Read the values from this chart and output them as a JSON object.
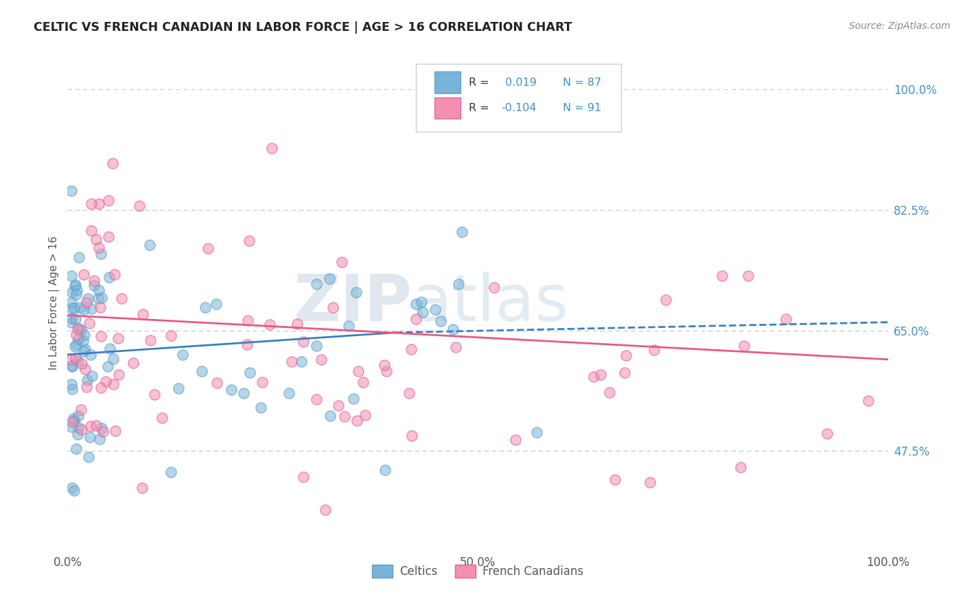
{
  "title": "CELTIC VS FRENCH CANADIAN IN LABOR FORCE | AGE > 16 CORRELATION CHART",
  "source": "Source: ZipAtlas.com",
  "ylabel": "In Labor Force | Age > 16",
  "xlim": [
    0.0,
    1.0
  ],
  "ylim": [
    0.33,
    1.05
  ],
  "right_ytick_positions": [
    0.475,
    0.65,
    0.825,
    1.0
  ],
  "right_ytick_labels": [
    "47.5%",
    "65.0%",
    "82.5%",
    "100.0%"
  ],
  "xtick_positions": [
    0.0,
    0.5,
    1.0
  ],
  "xtick_labels": [
    "0.0%",
    "50.0%",
    "100.0%"
  ],
  "celtic_color": "#7ab3d9",
  "french_color": "#f48fb1",
  "celtic_edge_color": "#5b9dc4",
  "french_edge_color": "#e06090",
  "celtic_line_color": "#3a7fc1",
  "french_line_color": "#e85a82",
  "grid_color": "#c8c8c8",
  "watermark": "ZIPatlas",
  "legend_R_celtic": "0.019",
  "legend_N_celtic": "87",
  "legend_R_french": "-0.104",
  "legend_N_french": "91",
  "background_color": "#ffffff",
  "plot_bg_color": "#ffffff",
  "legend_text_color": "#4292c6",
  "label_color": "#555555",
  "source_color": "#888888"
}
